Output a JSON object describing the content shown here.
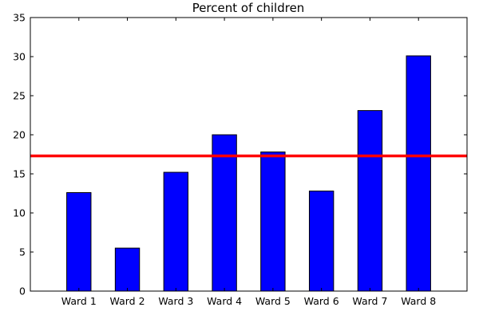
{
  "chart_data": {
    "type": "bar",
    "title": "Percent of children",
    "xlabel": "",
    "ylabel": "",
    "categories": [
      "Ward 1",
      "Ward 2",
      "Ward 3",
      "Ward 4",
      "Ward 5",
      "Ward 6",
      "Ward 7",
      "Ward 8"
    ],
    "values": [
      12.6,
      5.5,
      15.2,
      20.0,
      17.8,
      12.8,
      23.1,
      30.1
    ],
    "ylim": [
      0,
      35
    ],
    "yticks": [
      0,
      5,
      10,
      15,
      20,
      25,
      30,
      35
    ],
    "reference_line": {
      "value": 17.3
    },
    "bar_color": "#0000ff",
    "line_color": "#ff0000",
    "grid": false,
    "legend": "none"
  }
}
